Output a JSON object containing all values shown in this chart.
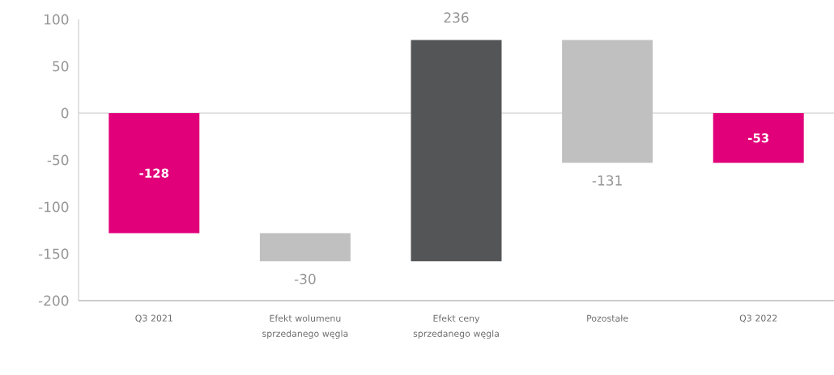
{
  "chart_data": {
    "type": "bar",
    "categories": [
      "Q3 2021",
      "Efekt wolumenu sprzedanego węgla",
      "Efekt ceny sprzedanego węgla",
      "Pozostałe",
      "Q3 2022"
    ],
    "values": [
      -128,
      -30,
      236,
      -131,
      -53
    ],
    "base": [
      0,
      -128,
      -158,
      78,
      0
    ],
    "colors": [
      "#e2007a",
      "#c0c0c0",
      "#545557",
      "#c0c0c0",
      "#e2007a"
    ],
    "ylim": [
      -200,
      100
    ],
    "yticks": [
      -200,
      -150,
      -100,
      -50,
      0,
      50,
      100
    ],
    "data_labels": true,
    "ref_lines": [
      {
        "axis": "y",
        "value": 0,
        "color": "#bfbfbf"
      }
    ]
  }
}
